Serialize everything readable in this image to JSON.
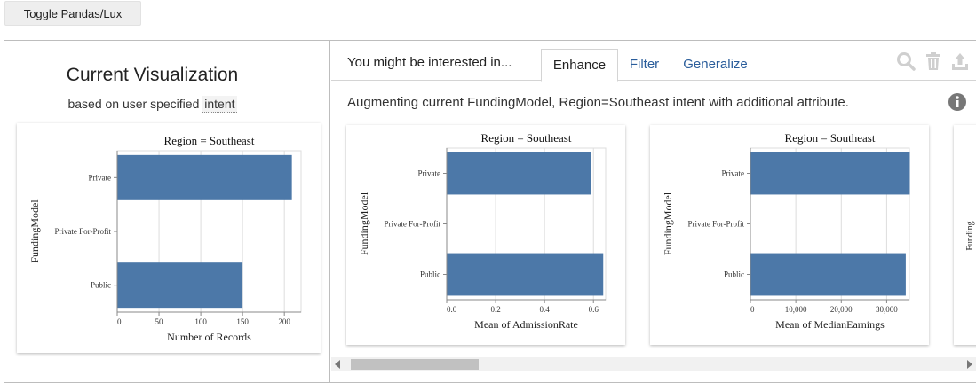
{
  "toolbar": {
    "toggle_label": "Toggle Pandas/Lux"
  },
  "current": {
    "title": "Current Visualization",
    "subtitle_prefix": "based on user specified",
    "subtitle_intent": "intent"
  },
  "recommendations": {
    "header_label": "You might be interested in...",
    "tabs": [
      {
        "label": "Enhance",
        "active": true
      },
      {
        "label": "Filter",
        "active": false
      },
      {
        "label": "Generalize",
        "active": false
      }
    ],
    "icons": [
      "search-icon",
      "trash-icon",
      "upload-icon"
    ],
    "info_icon": "info-icon",
    "description": "Augmenting current FundingModel, Region=Southeast intent with additional attribute.",
    "partial_next_chart_label": "Funding"
  },
  "colors": {
    "bar": "#4c78a8",
    "grid": "#dddddd",
    "link": "#2a5d9b"
  },
  "chart_data": [
    {
      "type": "bar",
      "orientation": "horizontal",
      "title": "Region = Southeast",
      "xlabel": "Number of Records",
      "ylabel": "FundingModel",
      "categories": [
        "Private",
        "Private For-Profit",
        "Public"
      ],
      "values": [
        209,
        0,
        150
      ],
      "xlim": [
        0,
        220
      ],
      "xticks": [
        0,
        50,
        100,
        150,
        200
      ],
      "xtick_labels": [
        "0",
        "50",
        "100",
        "150",
        "200"
      ]
    },
    {
      "type": "bar",
      "orientation": "horizontal",
      "title": "Region = Southeast",
      "xlabel": "Mean of AdmissionRate",
      "ylabel": "FundingModel",
      "categories": [
        "Private",
        "Private For-Profit",
        "Public"
      ],
      "values": [
        0.59,
        0,
        0.64
      ],
      "xlim": [
        0,
        0.65
      ],
      "xticks": [
        0,
        0.2,
        0.4,
        0.6
      ],
      "xtick_labels": [
        "0.0",
        "0.2",
        "0.4",
        "0.6"
      ]
    },
    {
      "type": "bar",
      "orientation": "horizontal",
      "title": "Region = Southeast",
      "xlabel": "Mean of MedianEarnings",
      "ylabel": "FundingModel",
      "categories": [
        "Private",
        "Private For-Profit",
        "Public"
      ],
      "values": [
        35100,
        0,
        34200
      ],
      "xlim": [
        0,
        35000
      ],
      "xticks": [
        0,
        10000,
        20000,
        30000
      ],
      "xtick_labels": [
        "0",
        "10,000",
        "20,000",
        "30,000"
      ]
    }
  ]
}
